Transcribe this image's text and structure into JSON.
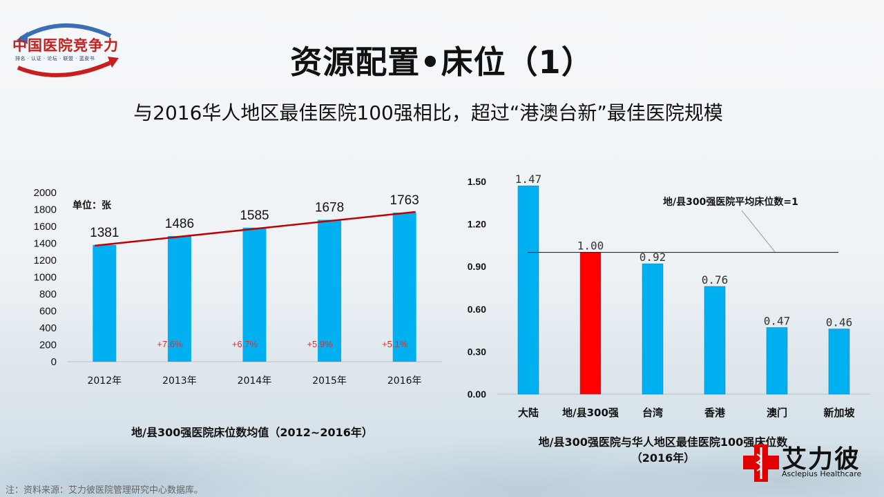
{
  "logo": {
    "name": "中国医院竞争力",
    "tagline": "排名 · 认证 · 论坛 · 联盟 · 蓝皮书"
  },
  "title": "资源配置•床位（1）",
  "subtitle": "与2016华人地区最佳医院100强相比，超过“港澳台新”最佳医院规模",
  "chart_data": [
    {
      "type": "bar",
      "title": "地/县300强医院床位数均值（2012~2016年）",
      "unit_label": "单位：张",
      "categories": [
        "2012年",
        "2013年",
        "2014年",
        "2015年",
        "2016年"
      ],
      "values": [
        1381,
        1486,
        1585,
        1678,
        1763
      ],
      "value_labels": [
        "1381",
        "1486",
        "1585",
        "1678",
        "1763"
      ],
      "growth_labels": [
        "+7.6%",
        "+6.7%",
        "+5.9%",
        "+5.1%"
      ],
      "ylim": [
        0,
        2000
      ],
      "yticks": [
        "0",
        "200",
        "400",
        "600",
        "800",
        "1000",
        "1200",
        "1400",
        "1600",
        "1800",
        "2000"
      ],
      "ytick_values": [
        0,
        200,
        400,
        600,
        800,
        1000,
        1200,
        1400,
        1600,
        1800,
        2000
      ],
      "trendline": true,
      "colors": {
        "bar": "#00b0f0",
        "trend": "#c00000",
        "growth": "#e03030"
      }
    },
    {
      "type": "bar",
      "title_line1": "地/县300强医院与华人地区最佳医院100强床位数",
      "title_line2": "（2016年）",
      "categories": [
        "大陆",
        "地/县300强",
        "台湾",
        "香港",
        "澳门",
        "新加坡"
      ],
      "values": [
        1.47,
        1.0,
        0.92,
        0.76,
        0.47,
        0.46
      ],
      "value_labels": [
        "1.47",
        "1.00",
        "0.92",
        "0.76",
        "0.47",
        "0.46"
      ],
      "ylim": [
        0,
        1.5
      ],
      "yticks": [
        "0.00",
        "0.30",
        "0.60",
        "0.90",
        "1.20",
        "1.50"
      ],
      "ytick_values": [
        0,
        0.3,
        0.6,
        0.9,
        1.2,
        1.5
      ],
      "reference_line": {
        "value": 1.0,
        "label": "地/县300强医院平均床位数=1"
      },
      "colors": {
        "bar": "#00b0f0",
        "highlight": "#ff0000",
        "highlight_index": 1
      }
    }
  ],
  "footnote": "注：资料来源：艾力彼医院管理研究中心数据库。",
  "brand": {
    "cn": "艾力彼",
    "en": "Asclepius Healthcare"
  }
}
